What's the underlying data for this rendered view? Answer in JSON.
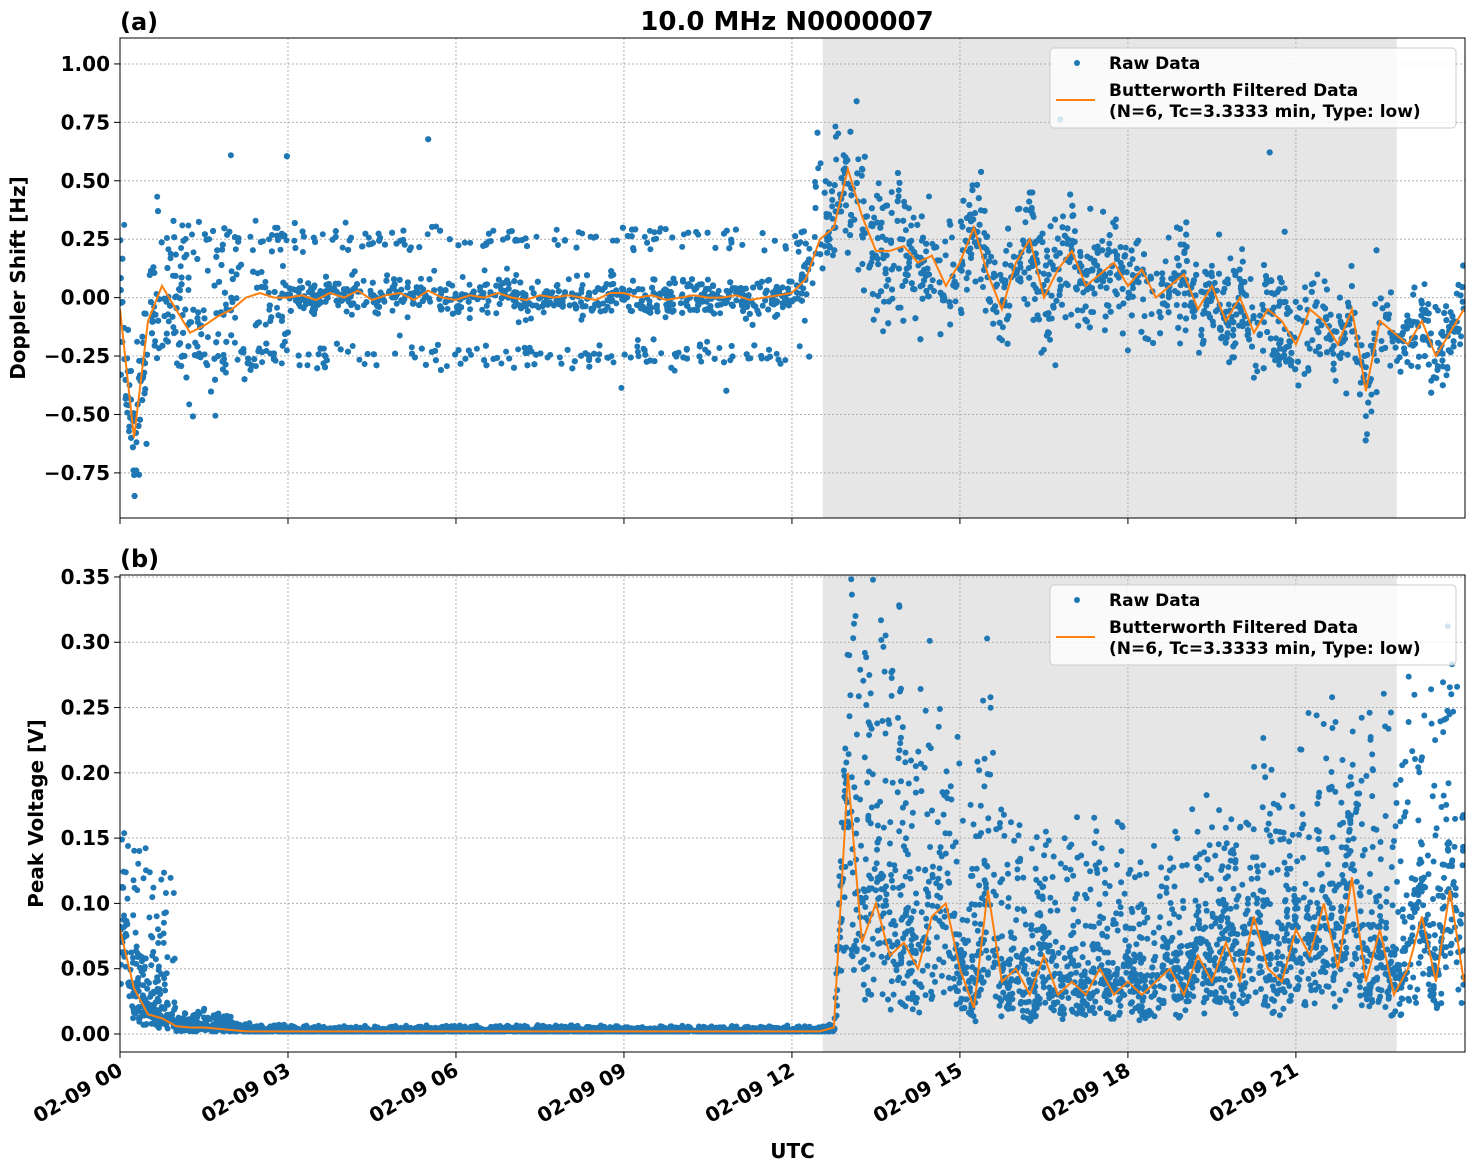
{
  "title": "10.0 MHz N0000007",
  "colors": {
    "raw": "#1f77b4",
    "filtered": "#ff7f0e",
    "shade": "#e6e6e6",
    "grid": "#b0b0b0"
  },
  "chart_data": [
    {
      "type": "scatter+line",
      "panel_label": "(a)",
      "ylabel": "Doppler Shift [Hz]",
      "xlabel": "",
      "xlim_hours": [
        0,
        24.02
      ],
      "ylim": [
        -0.943,
        1.111
      ],
      "yticks": [
        -0.75,
        -0.5,
        -0.25,
        0.0,
        0.25,
        0.5,
        0.75,
        1.0
      ],
      "ytick_labels": [
        "−0.75",
        "−0.50",
        "−0.25",
        "0.00",
        "0.25",
        "0.50",
        "0.75",
        "1.00"
      ],
      "shaded_hours": [
        12.55,
        22.8
      ],
      "grid": true,
      "legend": {
        "placement": "top-right",
        "entries": [
          "Raw Data",
          "Butterworth Filtered Data",
          "(N=6, Tc=3.3333 min, Type: low)"
        ]
      },
      "x_step_hours": 0.25,
      "filtered": [
        -0.05,
        -0.6,
        -0.1,
        0.05,
        -0.05,
        -0.15,
        -0.12,
        -0.08,
        -0.05,
        0.0,
        0.02,
        0.0,
        0.0,
        0.01,
        -0.01,
        0.02,
        0.0,
        0.03,
        -0.01,
        0.01,
        0.02,
        -0.01,
        0.03,
        0.0,
        -0.01,
        0.01,
        0.0,
        0.02,
        0.0,
        -0.01,
        0.01,
        0.0,
        0.01,
        0.0,
        -0.01,
        0.02,
        0.02,
        0.0,
        0.01,
        -0.01,
        0.0,
        0.01,
        0.0,
        0.0,
        0.01,
        -0.01,
        0.0,
        0.01,
        0.02,
        0.08,
        0.25,
        0.3,
        0.55,
        0.35,
        0.2,
        0.2,
        0.22,
        0.15,
        0.18,
        0.05,
        0.15,
        0.3,
        0.1,
        -0.05,
        0.15,
        0.25,
        0.0,
        0.12,
        0.2,
        0.05,
        0.1,
        0.15,
        0.05,
        0.12,
        0.0,
        0.05,
        0.1,
        -0.05,
        0.05,
        -0.1,
        0.0,
        -0.15,
        -0.05,
        -0.1,
        -0.2,
        -0.05,
        -0.1,
        -0.2,
        -0.05,
        -0.4,
        -0.1,
        -0.15,
        -0.2,
        -0.1,
        -0.25,
        -0.15,
        -0.05
      ],
      "raw_halfwidth_per_hour": [
        0.35,
        0.4,
        0.3,
        0.08,
        0.08,
        0.08,
        0.08,
        0.08,
        0.08,
        0.08,
        0.08,
        0.08,
        0.15,
        0.35,
        0.25,
        0.25,
        0.25,
        0.22,
        0.22,
        0.22,
        0.22,
        0.22,
        0.2,
        0.18
      ],
      "raw_side_bands": {
        "levels": [
          0.25,
          -0.25
        ],
        "hours": [
          1.0,
          12.5
        ]
      }
    },
    {
      "type": "scatter+line",
      "panel_label": "(b)",
      "ylabel": "Peak Voltage [V]",
      "xlabel": "UTC",
      "xlim_hours": [
        0,
        24.02
      ],
      "ylim": [
        -0.0138,
        0.3515
      ],
      "yticks": [
        0.0,
        0.05,
        0.1,
        0.15,
        0.2,
        0.25,
        0.3,
        0.35
      ],
      "ytick_labels": [
        "0.00",
        "0.05",
        "0.10",
        "0.15",
        "0.20",
        "0.25",
        "0.30",
        "0.35"
      ],
      "xticks_hours": [
        0,
        3,
        6,
        9,
        12,
        15,
        18,
        21
      ],
      "xtick_labels": [
        "02-09 00",
        "02-09 03",
        "02-09 06",
        "02-09 09",
        "02-09 12",
        "02-09 15",
        "02-09 18",
        "02-09 21"
      ],
      "shaded_hours": [
        12.55,
        22.8
      ],
      "grid": true,
      "legend": {
        "placement": "top-right",
        "entries": [
          "Raw Data",
          "Butterworth Filtered Data",
          "(N=6, Tc=3.3333 min, Type: low)"
        ]
      },
      "x_step_hours": 0.25,
      "filtered": [
        0.08,
        0.035,
        0.015,
        0.012,
        0.006,
        0.005,
        0.005,
        0.004,
        0.003,
        0.002,
        0.002,
        0.002,
        0.002,
        0.002,
        0.002,
        0.002,
        0.002,
        0.002,
        0.002,
        0.002,
        0.002,
        0.002,
        0.002,
        0.002,
        0.002,
        0.002,
        0.002,
        0.002,
        0.002,
        0.002,
        0.002,
        0.002,
        0.002,
        0.002,
        0.002,
        0.002,
        0.002,
        0.002,
        0.002,
        0.002,
        0.002,
        0.002,
        0.002,
        0.002,
        0.002,
        0.002,
        0.002,
        0.002,
        0.002,
        0.002,
        0.002,
        0.005,
        0.2,
        0.07,
        0.1,
        0.06,
        0.07,
        0.05,
        0.09,
        0.1,
        0.05,
        0.02,
        0.11,
        0.04,
        0.05,
        0.03,
        0.06,
        0.03,
        0.04,
        0.03,
        0.05,
        0.03,
        0.04,
        0.03,
        0.04,
        0.05,
        0.03,
        0.06,
        0.04,
        0.07,
        0.04,
        0.09,
        0.05,
        0.04,
        0.08,
        0.06,
        0.1,
        0.05,
        0.12,
        0.04,
        0.08,
        0.03,
        0.05,
        0.09,
        0.04,
        0.11,
        0.04
      ],
      "raw_upper_excess_per_hour": [
        0.06,
        0.006,
        0.003,
        0.002,
        0.002,
        0.002,
        0.002,
        0.002,
        0.002,
        0.002,
        0.002,
        0.002,
        0.002,
        0.15,
        0.1,
        0.08,
        0.06,
        0.06,
        0.06,
        0.06,
        0.07,
        0.09,
        0.1,
        0.1
      ]
    }
  ]
}
